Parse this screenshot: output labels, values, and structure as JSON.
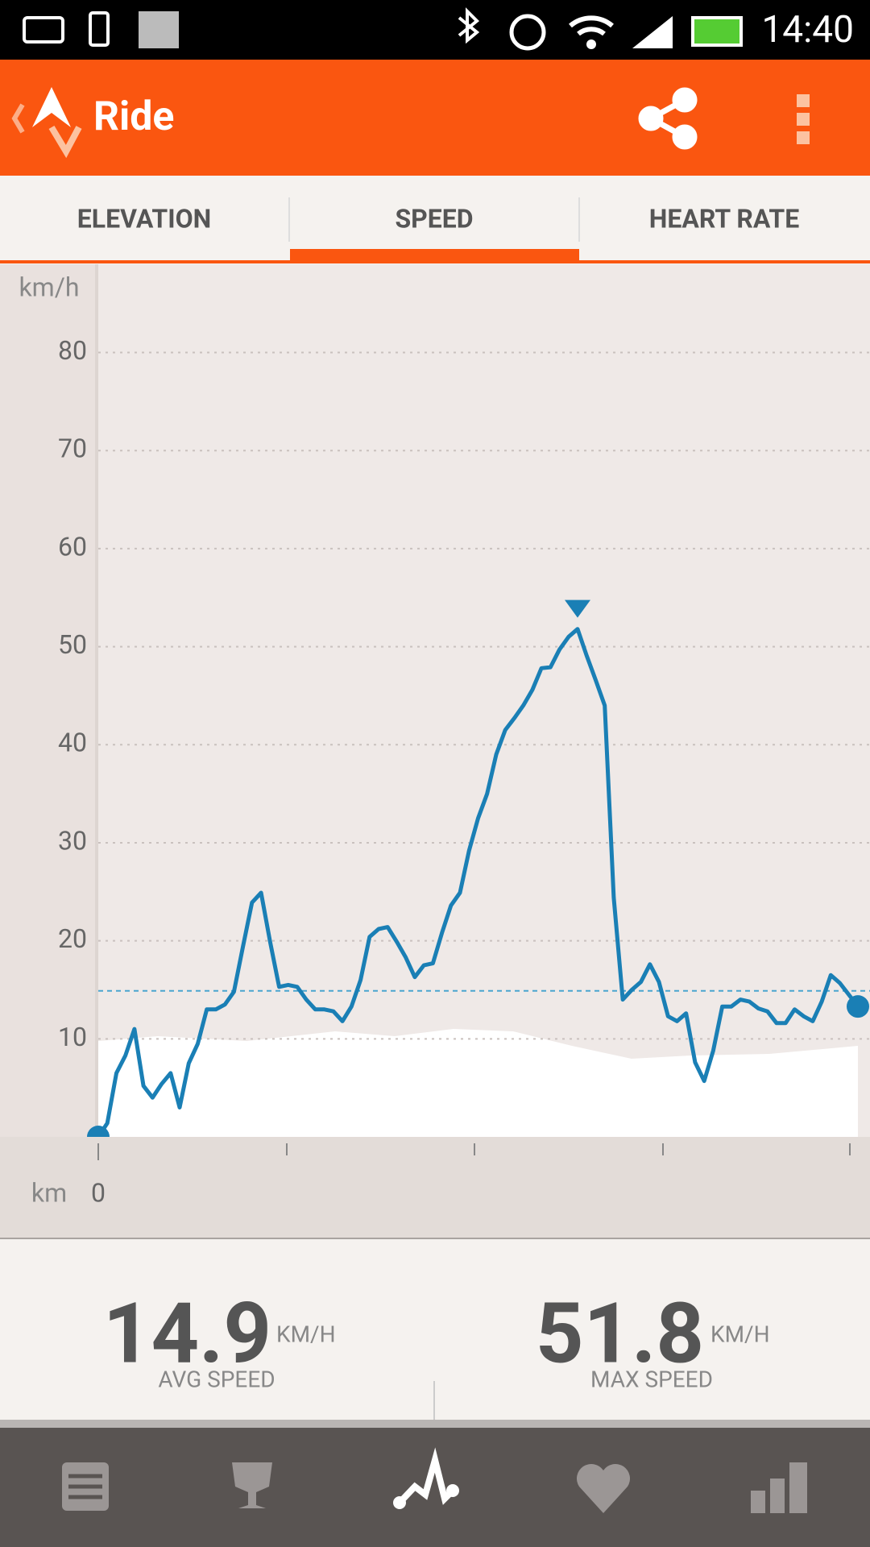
{
  "status_bar": {
    "time": "14:40"
  },
  "app_bar": {
    "title": "Ride"
  },
  "tabs": [
    "ELEVATION",
    "SPEED",
    "HEART RATE"
  ],
  "chart_data": {
    "type": "line",
    "y_label": "km/h",
    "x_label": "km",
    "xticks": [
      0
    ],
    "ylim": [
      0,
      89
    ],
    "yticks": [
      10,
      20,
      30,
      40,
      50,
      60,
      70,
      80
    ],
    "grid": true,
    "color": "#1a7fb5",
    "values": [
      0,
      1.4,
      6.5,
      8.3,
      11,
      5.2,
      4,
      5.4,
      6.5,
      3,
      7.5,
      9.5,
      13,
      13,
      13.5,
      14.8,
      19.4,
      23.9,
      24.9,
      19.9,
      15.3,
      15.5,
      15.3,
      14,
      13,
      13,
      12.8,
      11.8,
      13.3,
      16,
      20.4,
      21.2,
      21.4,
      19.9,
      18.3,
      16.3,
      17.5,
      17.7,
      20.8,
      23.6,
      24.9,
      29.2,
      32.5,
      35,
      39,
      41.5,
      42.7,
      44,
      45.6,
      47.8,
      47.9,
      49.7,
      51,
      51.8,
      49.1,
      46.6,
      44,
      24.4,
      14,
      15,
      15.8,
      17.6,
      15.8,
      12.3,
      11.8,
      12.6,
      7.6,
      5.7,
      8.8,
      13.3,
      13.3,
      14,
      13.8,
      13.1,
      12.8,
      11.6,
      11.6,
      13,
      12.3,
      11.8,
      13.8,
      16.5,
      15.7,
      14.5,
      13.3
    ],
    "avg_speed": 14.9,
    "max_speed": 51.8
  },
  "stats": [
    {
      "unit": "KM/H",
      "label": "AVG SPEED"
    },
    {
      "unit": "KM/H",
      "label": "MAX SPEED"
    }
  ]
}
